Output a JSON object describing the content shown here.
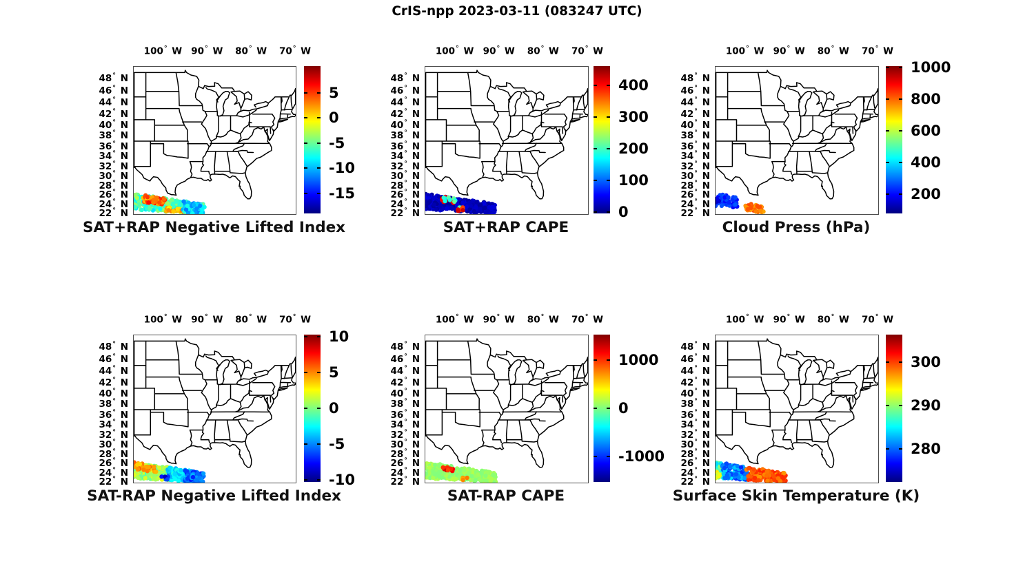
{
  "title": "CrIS-npp 2023-03-11 (083247 UTC)",
  "colors": {
    "background": "#ffffff",
    "text": "#000000",
    "map_outline": "#000000",
    "axis_frame": "#4d4d4d",
    "jet_stops": [
      "#00007f",
      "#0000ff",
      "#00ffff",
      "#ffff00",
      "#ff0000",
      "#7f0000"
    ]
  },
  "axes": {
    "lon_ticks": [
      {
        "value": 100,
        "label": "100° W"
      },
      {
        "value": 90,
        "label": "90° W"
      },
      {
        "value": 80,
        "label": "80° W"
      },
      {
        "value": 70,
        "label": "70° W"
      }
    ],
    "lat_ticks": [
      {
        "value": 48,
        "label": "48° N"
      },
      {
        "value": 46,
        "label": "46° N"
      },
      {
        "value": 44,
        "label": "44° N"
      },
      {
        "value": 42,
        "label": "42° N"
      },
      {
        "value": 40,
        "label": "40° N"
      },
      {
        "value": 38,
        "label": "38° N"
      },
      {
        "value": 36,
        "label": "36° N"
      },
      {
        "value": 34,
        "label": "34° N"
      },
      {
        "value": 32,
        "label": "32° N"
      },
      {
        "value": 30,
        "label": "30° N"
      },
      {
        "value": 28,
        "label": "28° N"
      },
      {
        "value": 26,
        "label": "26° N"
      },
      {
        "value": 24,
        "label": "24° N"
      },
      {
        "value": 22,
        "label": "22° N"
      }
    ],
    "lon_range_w": [
      106.8,
      70
    ],
    "lat_range_n": [
      21.8,
      49.9
    ]
  },
  "swath_band": {
    "start_lonlat_w": [
      107,
      24.6
    ],
    "end_lonlat_w": [
      91,
      22.9
    ],
    "halfwidth_deg": [
      1.7,
      1.05
    ]
  },
  "chart_data": [
    {
      "type": "scatter",
      "title": "SAT+RAP Negative Lifted Index",
      "colormap": "jet",
      "value_range": [
        -19,
        10.3
      ],
      "colorbar_ticks": [
        {
          "value": 5,
          "label": "5"
        },
        {
          "value": 0,
          "label": "0"
        },
        {
          "value": -5,
          "label": "-5"
        },
        {
          "value": -10,
          "label": "-10"
        },
        {
          "value": -15,
          "label": "-15"
        }
      ],
      "swath_clusters": [
        {
          "t": [
            0,
            1
          ],
          "off": [
            -1,
            1
          ],
          "values": [
            -9,
            -3
          ],
          "n": 300
        },
        {
          "t": [
            0.15,
            0.45
          ],
          "off": [
            0.1,
            1
          ],
          "values": [
            0,
            7
          ],
          "n": 60
        },
        {
          "t": [
            0.48,
            0.75
          ],
          "off": [
            -1,
            -0.3
          ],
          "values": [
            -1,
            4
          ],
          "n": 25
        },
        {
          "t": [
            0.72,
            1
          ],
          "off": [
            -1,
            1
          ],
          "values": [
            -12,
            -7
          ],
          "n": 80
        }
      ]
    },
    {
      "type": "scatter",
      "title": "SAT+RAP CAPE",
      "colormap": "jet",
      "value_range": [
        -5,
        462
      ],
      "colorbar_ticks": [
        {
          "value": 400,
          "label": "400"
        },
        {
          "value": 300,
          "label": "300"
        },
        {
          "value": 200,
          "label": "200"
        },
        {
          "value": 100,
          "label": "100"
        },
        {
          "value": 0,
          "label": "0"
        }
      ],
      "swath_clusters": [
        {
          "t": [
            0,
            1
          ],
          "off": [
            -1,
            1
          ],
          "values": [
            5,
            40
          ],
          "n": 400
        },
        {
          "t": [
            0.25,
            0.42
          ],
          "off": [
            0.2,
            1
          ],
          "values": [
            370,
            460
          ],
          "n": 10
        },
        {
          "t": [
            0.25,
            0.42
          ],
          "off": [
            0.2,
            1
          ],
          "values": [
            150,
            230
          ],
          "n": 8
        },
        {
          "t": [
            0.48,
            0.56
          ],
          "off": [
            -1,
            -0.2
          ],
          "values": [
            150,
            230
          ],
          "n": 8
        },
        {
          "t": [
            0.48,
            0.56
          ],
          "off": [
            -1,
            -0.2
          ],
          "values": [
            370,
            460
          ],
          "n": 6
        }
      ]
    },
    {
      "type": "scatter",
      "title": "Cloud Press (hPa)",
      "colormap": "jet",
      "value_range": [
        79,
        1009
      ],
      "colorbar_ticks": [
        {
          "value": 1000,
          "label": "1000"
        },
        {
          "value": 800,
          "label": "800"
        },
        {
          "value": 600,
          "label": "600"
        },
        {
          "value": 400,
          "label": "400"
        },
        {
          "value": 200,
          "label": "200"
        }
      ],
      "swath_clusters": [
        {
          "t": [
            0,
            0.33
          ],
          "off": [
            -0.5,
            1
          ],
          "values": [
            190,
            280
          ],
          "n": 65
        },
        {
          "t": [
            0,
            0.06
          ],
          "off": [
            -0.2,
            0.6
          ],
          "values": [
            140,
            180
          ],
          "n": 4
        },
        {
          "t": [
            0.44,
            0.68
          ],
          "off": [
            -1,
            0.15
          ],
          "values": [
            740,
            830
          ],
          "n": 40
        }
      ]
    },
    {
      "type": "scatter",
      "title": "SAT-RAP Negative Lifted Index",
      "colormap": "jet",
      "value_range": [
        -10.3,
        10.3
      ],
      "colorbar_ticks": [
        {
          "value": 10,
          "label": "10"
        },
        {
          "value": 5,
          "label": "5"
        },
        {
          "value": 0,
          "label": "0"
        },
        {
          "value": -5,
          "label": "-5"
        },
        {
          "value": -10,
          "label": "-10"
        }
      ],
      "swath_clusters": [
        {
          "t": [
            0,
            0.55
          ],
          "off": [
            -1,
            1
          ],
          "values": [
            -1.5,
            2.5
          ],
          "n": 230
        },
        {
          "t": [
            0.02,
            0.4
          ],
          "off": [
            0,
            1
          ],
          "values": [
            3,
            6
          ],
          "n": 30
        },
        {
          "t": [
            0.5,
            0.8
          ],
          "off": [
            -1,
            1
          ],
          "values": [
            -4.5,
            -2
          ],
          "n": 90
        },
        {
          "t": [
            0.42,
            0.5
          ],
          "off": [
            -1,
            -0.4
          ],
          "values": [
            -9,
            -6
          ],
          "n": 8
        },
        {
          "t": [
            0.75,
            1
          ],
          "off": [
            -1,
            1
          ],
          "values": [
            -7.5,
            -4
          ],
          "n": 90
        }
      ]
    },
    {
      "type": "scatter",
      "title": "SAT-RAP CAPE",
      "colormap": "jet",
      "value_range": [
        -1520,
        1520
      ],
      "colorbar_ticks": [
        {
          "value": 1000,
          "label": "1000"
        },
        {
          "value": 0,
          "label": "0"
        },
        {
          "value": -1000,
          "label": "-1000"
        }
      ],
      "swath_clusters": [
        {
          "t": [
            0,
            1
          ],
          "off": [
            -1,
            1
          ],
          "values": [
            0,
            160
          ],
          "n": 360
        },
        {
          "t": [
            0.27,
            0.41
          ],
          "off": [
            0.2,
            1
          ],
          "values": [
            900,
            1400
          ],
          "n": 10
        },
        {
          "t": [
            0.49,
            0.59
          ],
          "off": [
            -1,
            -0.3
          ],
          "values": [
            400,
            800
          ],
          "n": 8
        }
      ]
    },
    {
      "type": "scatter",
      "title": "Surface Skin Temperature (K)",
      "colormap": "jet",
      "value_range": [
        272.4,
        306.3
      ],
      "colorbar_ticks": [
        {
          "value": 300,
          "label": "300"
        },
        {
          "value": 290,
          "label": "290"
        },
        {
          "value": 280,
          "label": "280"
        }
      ],
      "swath_clusters": [
        {
          "t": [
            0,
            0.14
          ],
          "off": [
            -1,
            1
          ],
          "values": [
            284,
            290
          ],
          "n": 60
        },
        {
          "t": [
            0,
            0.07
          ],
          "off": [
            -1,
            -0.3
          ],
          "values": [
            291.5,
            294.5
          ],
          "n": 12
        },
        {
          "t": [
            0.1,
            0.46
          ],
          "off": [
            -1,
            1
          ],
          "values": [
            278,
            285
          ],
          "n": 130
        },
        {
          "t": [
            0.46,
            1
          ],
          "off": [
            -1,
            1
          ],
          "values": [
            297,
            301
          ],
          "n": 160
        }
      ]
    }
  ]
}
